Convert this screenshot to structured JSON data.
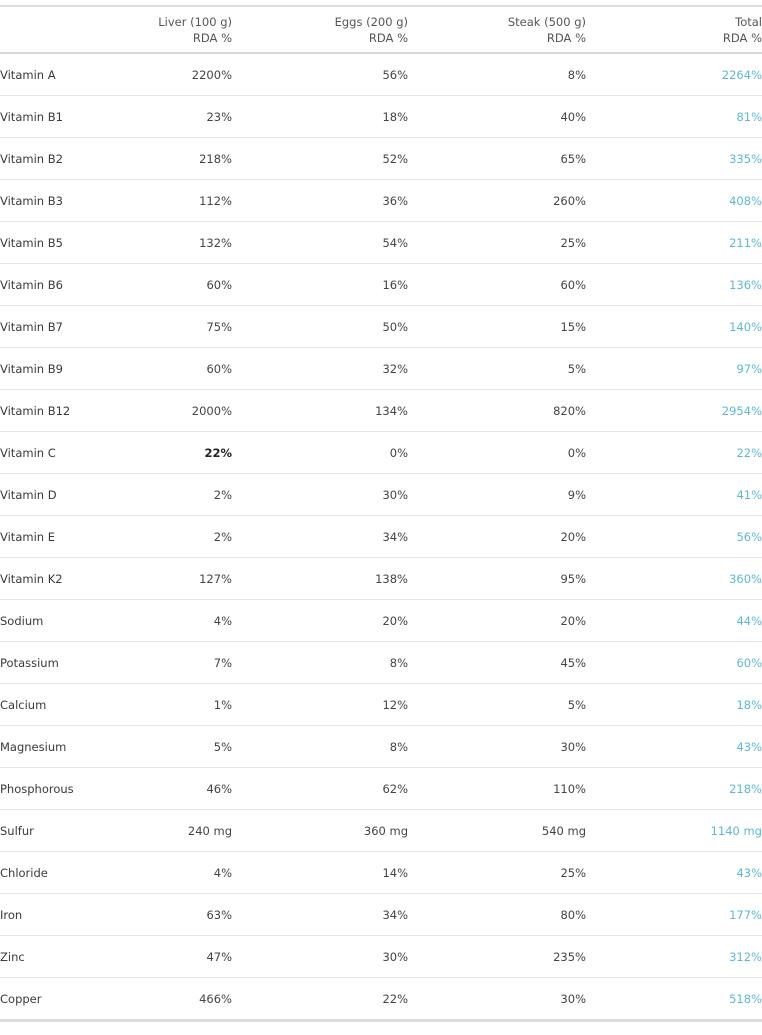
{
  "columns": [
    {
      "line1": "",
      "line2": ""
    },
    {
      "line1": "Liver (100 g)",
      "line2": "RDA %"
    },
    {
      "line1": "Eggs  (200 g)",
      "line2": "RDA %"
    },
    {
      "line1": "Steak (500 g)",
      "line2": "RDA %"
    },
    {
      "line1": "Total",
      "line2": "RDA %"
    }
  ],
  "total_color": "#5cb8d6",
  "rows": [
    {
      "name": "Vitamin A",
      "liver": "2200%",
      "eggs": "56%",
      "steak": "8%",
      "total": "2264%"
    },
    {
      "name": "Vitamin B1",
      "liver": "23%",
      "eggs": "18%",
      "steak": "40%",
      "total": "81%"
    },
    {
      "name": "Vitamin B2",
      "liver": "218%",
      "eggs": "52%",
      "steak": "65%",
      "total": "335%"
    },
    {
      "name": "Vitamin B3",
      "liver": "112%",
      "eggs": "36%",
      "steak": "260%",
      "total": "408%"
    },
    {
      "name": "Vitamin B5",
      "liver": "132%",
      "eggs": "54%",
      "steak": "25%",
      "total": "211%"
    },
    {
      "name": "Vitamin B6",
      "liver": "60%",
      "eggs": "16%",
      "steak": "60%",
      "total": "136%"
    },
    {
      "name": "Vitamin B7",
      "liver": "75%",
      "eggs": "50%",
      "steak": "15%",
      "total": "140%"
    },
    {
      "name": "Vitamin B9",
      "liver": "60%",
      "eggs": "32%",
      "steak": "5%",
      "total": "97%"
    },
    {
      "name": "Vitamin B12",
      "liver": "2000%",
      "eggs": "134%",
      "steak": "820%",
      "total": "2954%"
    },
    {
      "name": "Vitamin C",
      "liver": "22%",
      "eggs": "0%",
      "steak": "0%",
      "total": "22%"
    },
    {
      "name": "Vitamin D",
      "liver": "2%",
      "eggs": "30%",
      "steak": "9%",
      "total": "41%"
    },
    {
      "name": "Vitamin E",
      "liver": "2%",
      "eggs": "34%",
      "steak": "20%",
      "total": "56%"
    },
    {
      "name": "Vitamin K2",
      "liver": "127%",
      "eggs": "138%",
      "steak": "95%",
      "total": "360%"
    },
    {
      "name": "Sodium",
      "liver": "4%",
      "eggs": "20%",
      "steak": "20%",
      "total": "44%"
    },
    {
      "name": "Potassium",
      "liver": "7%",
      "eggs": "8%",
      "steak": "45%",
      "total": "60%"
    },
    {
      "name": "Calcium",
      "liver": "1%",
      "eggs": "12%",
      "steak": "5%",
      "total": "18%"
    },
    {
      "name": "Magnesium",
      "liver": "5%",
      "eggs": "8%",
      "steak": "30%",
      "total": "43%"
    },
    {
      "name": "Phosphorous",
      "liver": "46%",
      "eggs": "62%",
      "steak": "110%",
      "total": "218%"
    },
    {
      "name": "Sulfur",
      "liver": "240 mg",
      "eggs": "360 mg",
      "steak": "540 mg",
      "total": "1140 mg"
    },
    {
      "name": "Chloride",
      "liver": "4%",
      "eggs": "14%",
      "steak": "25%",
      "total": "43%"
    },
    {
      "name": "Iron",
      "liver": "63%",
      "eggs": "34%",
      "steak": "80%",
      "total": "177%"
    },
    {
      "name": "Zinc",
      "liver": "47%",
      "eggs": "30%",
      "steak": "235%",
      "total": "312%"
    },
    {
      "name": "Copper",
      "liver": "466%",
      "eggs": "22%",
      "steak": "30%",
      "total": "518%"
    }
  ]
}
